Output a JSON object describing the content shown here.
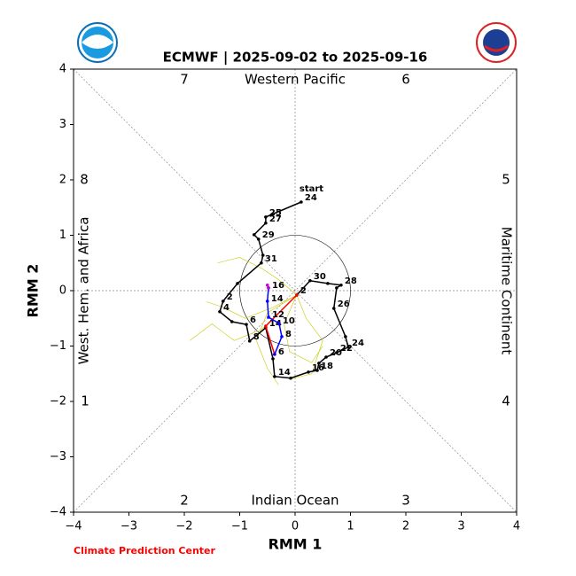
{
  "chart_data": {
    "type": "mjo_phase",
    "title": "ECMWF | 2025-09-02 to 2025-09-16",
    "xlabel": "RMM 1",
    "ylabel": "RMM 2",
    "credit": "Climate Prediction Center",
    "xlim": [
      -4,
      4
    ],
    "ylim": [
      -4,
      4
    ],
    "xticks": [
      {
        "value": -4,
        "label": "−4"
      },
      {
        "value": -3,
        "label": "−3"
      },
      {
        "value": -2,
        "label": "−2"
      },
      {
        "value": -1,
        "label": "−1"
      },
      0,
      1,
      2,
      3,
      4
    ],
    "yticks": [
      {
        "value": -4,
        "label": "−4"
      },
      {
        "value": -3,
        "label": "−3"
      },
      {
        "value": -2,
        "label": "−2"
      },
      {
        "value": -1,
        "label": "−1"
      },
      0,
      1,
      2,
      3,
      4
    ],
    "phase_labels": [
      "1",
      "2",
      "3",
      "4",
      "5",
      "6",
      "7",
      "8"
    ],
    "region_labels": [
      "Western Pacific",
      "Indian Ocean",
      "West. Hem. and Africa",
      "Maritime Continent"
    ],
    "amplitude_circle": 1,
    "ensemble": {
      "color": "#c8c800",
      "members": [
        {
          "x": [
            0.03,
            -0.4,
            -0.9,
            -1.3,
            -1.6
          ],
          "y": [
            -0.08,
            -0.3,
            -0.5,
            -0.3,
            -0.2
          ]
        },
        {
          "x": [
            0.03,
            -0.2,
            -0.1,
            0.3,
            0.5
          ],
          "y": [
            -0.08,
            -0.6,
            -1.1,
            -1.3,
            -1.0
          ]
        },
        {
          "x": [
            0.03,
            -0.5,
            -0.7,
            -0.5,
            -0.3
          ],
          "y": [
            -0.08,
            -0.4,
            -0.9,
            -1.4,
            -1.7
          ]
        },
        {
          "x": [
            0.03,
            -0.3,
            -0.6,
            -1.0,
            -1.4
          ],
          "y": [
            -0.08,
            0.2,
            0.4,
            0.6,
            0.5
          ]
        },
        {
          "x": [
            0.03,
            0.2,
            0.5,
            0.3,
            -0.1
          ],
          "y": [
            -0.08,
            -0.5,
            -0.9,
            -1.5,
            -1.6
          ]
        },
        {
          "x": [
            0.03,
            -0.6,
            -1.1,
            -1.5,
            -1.9
          ],
          "y": [
            -0.08,
            -0.7,
            -0.9,
            -0.6,
            -0.9
          ]
        }
      ]
    },
    "observed": {
      "color": "#000000",
      "start_label": "start",
      "x": [
        0.11,
        -0.53,
        -0.53,
        -0.74,
        -0.66,
        -0.58,
        -0.61,
        -1.04,
        -1.3,
        -1.36,
        -1.14,
        -0.88,
        -0.82,
        -0.53,
        -0.4,
        -0.37,
        -0.08,
        0.24,
        0.4,
        0.43,
        0.56,
        0.75,
        0.96,
        0.91,
        0.7,
        0.75,
        0.83,
        0.59,
        0.27,
        0.03
      ],
      "y": [
        1.6,
        1.33,
        1.22,
        1.01,
        0.93,
        0.64,
        0.5,
        0.13,
        -0.19,
        -0.38,
        -0.56,
        -0.61,
        -0.91,
        -0.67,
        -1.23,
        -1.55,
        -1.58,
        -1.47,
        -1.44,
        -1.31,
        -1.2,
        -1.12,
        -1.02,
        -0.83,
        -0.32,
        0.05,
        0.1,
        0.13,
        0.18,
        -0.08
      ],
      "labels": [
        "24",
        "25",
        "27",
        null,
        "29",
        null,
        "31",
        null,
        "2",
        "4",
        null,
        "6",
        "8",
        null,
        null,
        "14",
        null,
        "16",
        "18",
        null,
        "20",
        "22",
        "24",
        null,
        "26",
        null,
        "28",
        null,
        "30",
        "2"
      ]
    },
    "forecast": [
      {
        "color": "#ff0000",
        "x": [
          0.03,
          -0.53,
          -0.37
        ],
        "y": [
          -0.08,
          -0.64,
          -1.15
        ],
        "labels": [
          null,
          "14",
          "6"
        ]
      },
      {
        "color": "#0000ff",
        "x": [
          -0.37,
          -0.24,
          -0.29,
          -0.48,
          -0.5,
          -0.48
        ],
        "y": [
          -1.15,
          -0.83,
          -0.59,
          -0.48,
          -0.19,
          0.05
        ],
        "labels": [
          null,
          "8",
          "10",
          "12",
          "14",
          "16"
        ]
      },
      {
        "color": "#cc00cc",
        "x": [
          -0.48,
          -0.5
        ],
        "y": [
          0.05,
          0.1
        ],
        "labels": [
          null,
          null
        ]
      }
    ]
  }
}
